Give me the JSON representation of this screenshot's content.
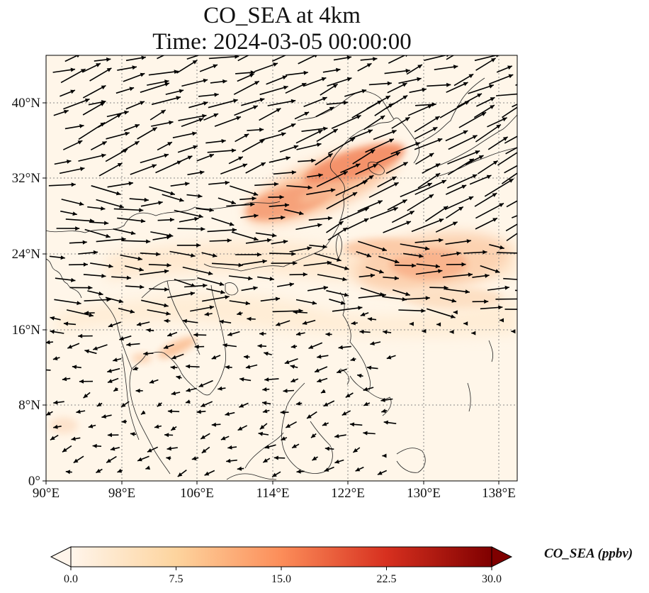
{
  "title": {
    "line1": "CO_SEA at 4km",
    "line2": "Time: 2024-03-05 00:00:00"
  },
  "map": {
    "lon_range": [
      90,
      140
    ],
    "lat_range": [
      0,
      45
    ],
    "lon_ticks": [
      "90°E",
      "98°E",
      "106°E",
      "114°E",
      "122°E",
      "130°E",
      "138°E"
    ],
    "lat_ticks": [
      "0°",
      "8°N",
      "16°N",
      "24°N",
      "32°N",
      "40°N"
    ],
    "gridline_style": "dotted"
  },
  "colorbar": {
    "label": "CO_SEA (ppbv)",
    "ticks": [
      "0.0",
      "7.5",
      "15.0",
      "22.5",
      "30.0"
    ],
    "range": [
      0,
      30
    ],
    "colors": [
      "#fff5eb",
      "#fdd49e",
      "#fc8d59",
      "#d7301f",
      "#7f0000"
    ],
    "extend": "both"
  },
  "chart_data": {
    "type": "heatmap",
    "title": "CO_SEA at 4km",
    "subtitle": "Time: 2024-03-05 00:00:00",
    "variable": "CO_SEA",
    "units": "ppbv",
    "overlay": "wind vectors (quiver)",
    "plumes": [
      {
        "name": "East China Sea / Yellow Sea plume",
        "lon": 121,
        "lat": 33,
        "value": 13
      },
      {
        "name": "East China plume",
        "lon": 115,
        "lat": 29,
        "value": 11
      },
      {
        "name": "West Pacific plume south of Japan",
        "lon": 131,
        "lat": 23,
        "value": 9
      },
      {
        "name": "Indochina plume",
        "lon": 104,
        "lat": 15,
        "value": 5
      }
    ]
  },
  "colors": {
    "background": "#fff6e9",
    "coast": "#222222",
    "grid": "#888888",
    "arrow": "#000000"
  }
}
